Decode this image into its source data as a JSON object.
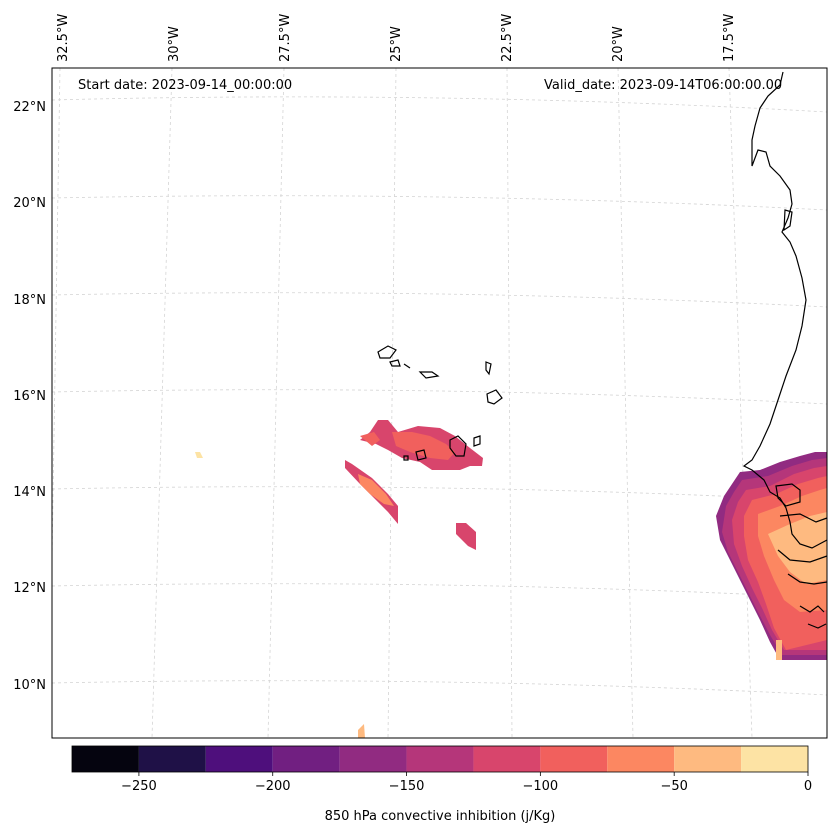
{
  "annotations": {
    "start_date": "Start date: 2023-09-14_00:00:00",
    "valid_date": "Valid_date: 2023-09-14T06:00:00.00"
  },
  "longitude_labels": [
    "32.5°W",
    "30°W",
    "27.5°W",
    "25°W",
    "22.5°W",
    "20°W",
    "17.5°W"
  ],
  "latitude_labels": [
    "22°N",
    "20°N",
    "18°N",
    "16°N",
    "14°N",
    "12°N",
    "10°N"
  ],
  "colorbar": {
    "label": "850 hPa convective inhibition (j/Kg)",
    "tick_labels": [
      "−250",
      "−200",
      "−150",
      "−100",
      "−50",
      "0"
    ],
    "levels": [
      -275,
      -250,
      -225,
      -200,
      -175,
      -150,
      -125,
      -100,
      -75,
      -50,
      -25,
      0
    ],
    "colors": [
      "#05040f",
      "#1f1147",
      "#4e0f7c",
      "#711f81",
      "#912b81",
      "#b5367a",
      "#d8456c",
      "#f1605d",
      "#fc8761",
      "#feba80",
      "#fde3a4"
    ]
  },
  "style": {
    "coastline_color": "#000000",
    "gridline_color": "#cccccc",
    "ocean_color": "#ffffff"
  }
}
